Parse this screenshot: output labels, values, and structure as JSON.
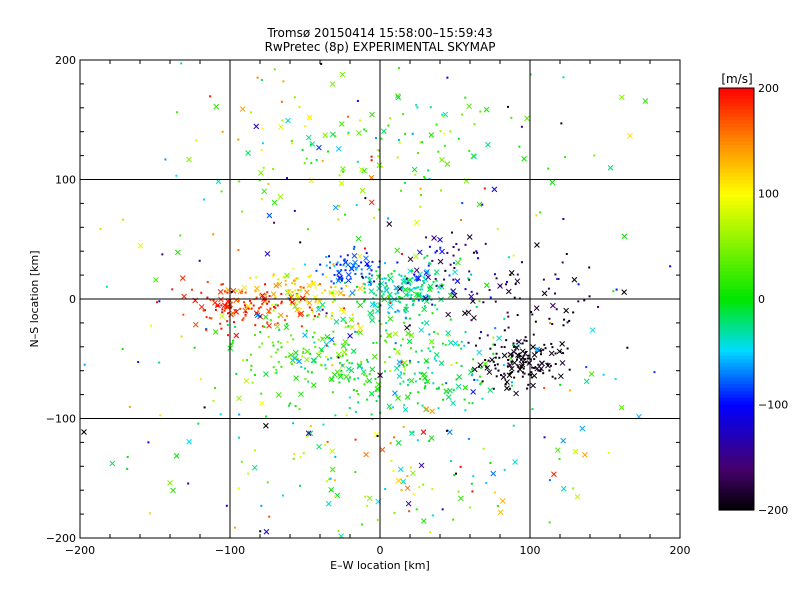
{
  "chart_data": {
    "type": "scatter",
    "title": "Tromsø 20150414 15:58:00–15:59:43",
    "subtitle": "RwPretec (8p) EXPERIMENTAL SKYMAP",
    "xlabel": "E–W location [km]",
    "ylabel": "N–S location [km]",
    "xlim": [
      -200,
      200
    ],
    "ylim": [
      -200,
      200
    ],
    "xticks": [
      -200,
      -100,
      0,
      100,
      200
    ],
    "yticks": [
      -200,
      -100,
      0,
      100,
      200
    ],
    "grid": true,
    "marker_types": [
      "dot",
      "cross"
    ],
    "colorbar": {
      "label": "[m/s]",
      "min": -200,
      "max": 200,
      "ticks": [
        200,
        100,
        0,
        -100,
        -200
      ],
      "colormap": "black-purple-blue-cyan-green-yellow-red"
    },
    "clusters": [
      {
        "x": -85,
        "y": -5,
        "sx": 22,
        "sy": 10,
        "v": 190,
        "vs": 15,
        "n": 130
      },
      {
        "x": -55,
        "y": 5,
        "sx": 18,
        "sy": 10,
        "v": 105,
        "vs": 30,
        "n": 110
      },
      {
        "x": -20,
        "y": 25,
        "sx": 10,
        "sy": 7,
        "v": -85,
        "vs": 20,
        "n": 70
      },
      {
        "x": 15,
        "y": 5,
        "sx": 14,
        "sy": 12,
        "v": -25,
        "vs": 20,
        "n": 160
      },
      {
        "x": -40,
        "y": -45,
        "sx": 35,
        "sy": 20,
        "v": 25,
        "vs": 35,
        "n": 170
      },
      {
        "x": 25,
        "y": -60,
        "sx": 38,
        "sy": 22,
        "v": -15,
        "vs": 25,
        "n": 180
      },
      {
        "x": 95,
        "y": -55,
        "sx": 12,
        "sy": 10,
        "v": -195,
        "vs": 8,
        "n": 140
      },
      {
        "x": 100,
        "y": -5,
        "sx": 25,
        "sy": 15,
        "v": -180,
        "vs": 20,
        "n": 60
      },
      {
        "x": 45,
        "y": 30,
        "sx": 25,
        "sy": 15,
        "v": -140,
        "vs": 40,
        "n": 60
      },
      {
        "x": 20,
        "y": 130,
        "sx": 45,
        "sy": 30,
        "v": 20,
        "vs": 40,
        "n": 90
      },
      {
        "x": -60,
        "y": 130,
        "sx": 30,
        "sy": 30,
        "v": 80,
        "vs": 60,
        "n": 40
      },
      {
        "x": 0,
        "y": -150,
        "sx": 70,
        "sy": 30,
        "v": 30,
        "vs": 80,
        "n": 100
      },
      {
        "x": 0,
        "y": 0,
        "sx": 110,
        "sy": 110,
        "v": 0,
        "vs": 130,
        "n": 260
      }
    ]
  }
}
